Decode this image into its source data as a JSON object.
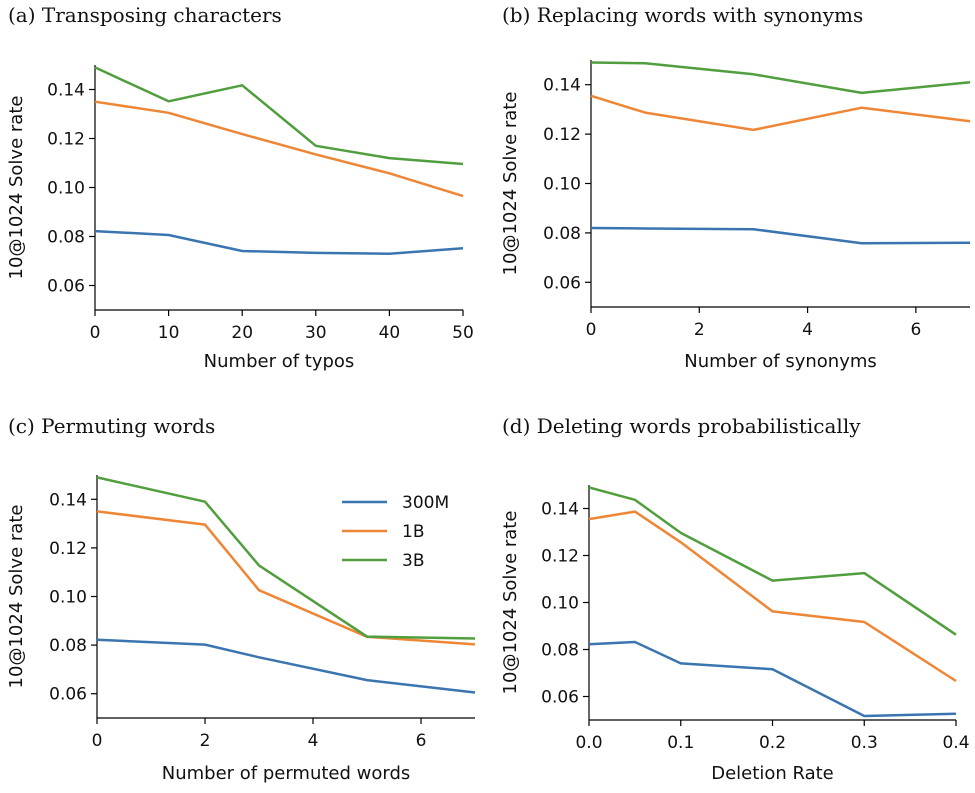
{
  "colors": {
    "300M": "#3a75b0",
    "1B": "#ee8636",
    "3B": "#519e3e"
  },
  "chart_data": [
    {
      "type": "line",
      "title": "(a) Transposing characters",
      "xlabel": "Number of typos",
      "ylabel": "10@1024 Solve rate",
      "xlim": [
        0,
        50
      ],
      "ylim": [
        0.05,
        0.15
      ],
      "xticks": [
        0,
        10,
        20,
        30,
        40,
        50
      ],
      "xtick_labels": [
        "0",
        "10",
        "20",
        "30",
        "40",
        "50"
      ],
      "yticks": [
        0.06,
        0.08,
        0.1,
        0.12,
        0.14
      ],
      "ytick_labels": [
        "0.06",
        "0.08",
        "0.10",
        "0.12",
        "0.14"
      ],
      "x": [
        0,
        10,
        20,
        30,
        40,
        50
      ],
      "series": [
        {
          "name": "300M",
          "values": [
            0.0822,
            0.0806,
            0.0741,
            0.0733,
            0.073,
            0.0752
          ]
        },
        {
          "name": "1B",
          "values": [
            0.135,
            0.1305,
            0.1218,
            0.1135,
            0.1058,
            0.0965
          ]
        },
        {
          "name": "3B",
          "values": [
            0.149,
            0.1352,
            0.1417,
            0.117,
            0.112,
            0.1096
          ]
        }
      ],
      "legend": false
    },
    {
      "type": "line",
      "title": "(b) Replacing words with synonyms",
      "xlabel": "Number of synonyms",
      "ylabel": "10@1024 Solve rate",
      "xlim": [
        0,
        7
      ],
      "ylim": [
        0.05,
        0.15
      ],
      "xticks": [
        0,
        2,
        4,
        6
      ],
      "xtick_labels": [
        "0",
        "2",
        "4",
        "6"
      ],
      "yticks": [
        0.06,
        0.08,
        0.1,
        0.12,
        0.14
      ],
      "ytick_labels": [
        "0.06",
        "0.08",
        "0.10",
        "0.12",
        "0.14"
      ],
      "x": [
        0,
        1,
        3,
        5,
        7
      ],
      "series": [
        {
          "name": "300M",
          "values": [
            0.082,
            0.0818,
            0.0815,
            0.0758,
            0.076
          ]
        },
        {
          "name": "1B",
          "values": [
            0.1355,
            0.1287,
            0.1217,
            0.1307,
            0.1252
          ]
        },
        {
          "name": "3B",
          "values": [
            0.149,
            0.1487,
            0.1442,
            0.1367,
            0.141
          ]
        }
      ],
      "legend": false
    },
    {
      "type": "line",
      "title": "(c) Permuting words",
      "xlabel": "Number of permuted words",
      "ylabel": "10@1024 Solve rate",
      "xlim": [
        0,
        7
      ],
      "ylim": [
        0.05,
        0.15
      ],
      "xticks": [
        0,
        2,
        4,
        6
      ],
      "xtick_labels": [
        "0",
        "2",
        "4",
        "6"
      ],
      "yticks": [
        0.06,
        0.08,
        0.1,
        0.12,
        0.14
      ],
      "ytick_labels": [
        "0.06",
        "0.08",
        "0.10",
        "0.12",
        "0.14"
      ],
      "x": [
        0,
        2,
        3,
        5,
        7
      ],
      "series": [
        {
          "name": "300M",
          "values": [
            0.0822,
            0.0802,
            0.075,
            0.0656,
            0.0605
          ]
        },
        {
          "name": "1B",
          "values": [
            0.135,
            0.1296,
            0.1026,
            0.0834,
            0.0803
          ]
        },
        {
          "name": "3B",
          "values": [
            0.149,
            0.139,
            0.1128,
            0.0835,
            0.0827
          ]
        }
      ],
      "legend": true,
      "legend_position": "upper-right",
      "legend_entries": [
        "300M",
        "1B",
        "3B"
      ]
    },
    {
      "type": "line",
      "title": "(d) Deleting words probabilistically",
      "xlabel": "Deletion Rate",
      "ylabel": "10@1024 Solve rate",
      "xlim": [
        0,
        0.4
      ],
      "ylim": [
        0.05,
        0.15
      ],
      "xticks": [
        0,
        0.1,
        0.2,
        0.3,
        0.4
      ],
      "xtick_labels": [
        "0.0",
        "0.1",
        "0.2",
        "0.3",
        "0.4"
      ],
      "yticks": [
        0.06,
        0.08,
        0.1,
        0.12,
        0.14
      ],
      "ytick_labels": [
        "0.06",
        "0.08",
        "0.10",
        "0.12",
        "0.14"
      ],
      "x": [
        0,
        0.05,
        0.1,
        0.2,
        0.3,
        0.4
      ],
      "series": [
        {
          "name": "300M",
          "values": [
            0.0822,
            0.0832,
            0.0741,
            0.0716,
            0.0517,
            0.0527
          ]
        },
        {
          "name": "1B",
          "values": [
            0.1355,
            0.1387,
            0.1256,
            0.0962,
            0.0917,
            0.0666
          ]
        },
        {
          "name": "3B",
          "values": [
            0.149,
            0.1437,
            0.1296,
            0.1093,
            0.1125,
            0.0863
          ]
        }
      ],
      "legend": false
    }
  ]
}
